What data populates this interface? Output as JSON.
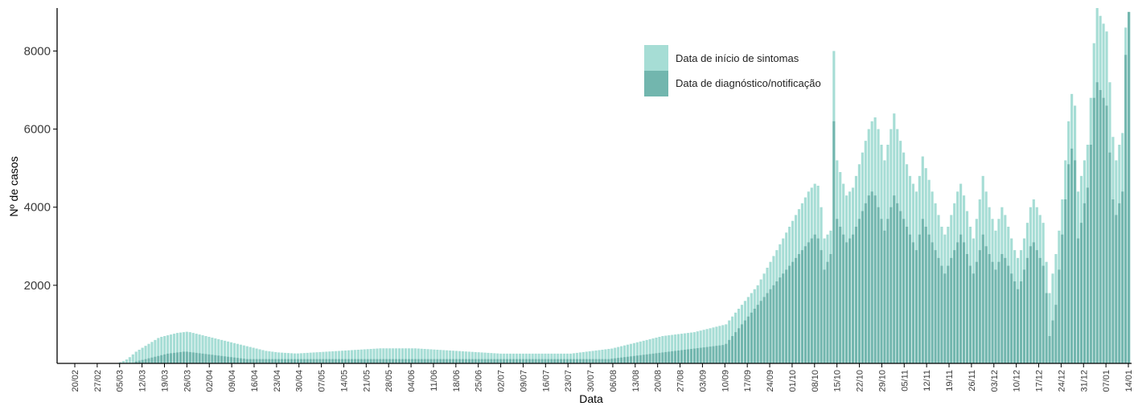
{
  "chart_data": {
    "type": "bar",
    "title": "",
    "xlabel": "Data",
    "ylabel": "Nº de casos",
    "ylim": [
      0,
      9100
    ],
    "yticks": [
      2000,
      4000,
      6000,
      8000
    ],
    "grid": false,
    "legend_position": "top-right",
    "x_tick_labels": [
      "20/02",
      "27/02",
      "05/03",
      "12/03",
      "19/03",
      "26/03",
      "02/04",
      "09/04",
      "16/04",
      "23/04",
      "30/04",
      "07/05",
      "14/05",
      "21/05",
      "28/05",
      "04/06",
      "11/06",
      "18/06",
      "25/06",
      "02/07",
      "09/07",
      "16/07",
      "23/07",
      "30/07",
      "06/08",
      "13/08",
      "20/08",
      "27/08",
      "03/09",
      "10/09",
      "17/09",
      "24/09",
      "01/10",
      "08/10",
      "15/10",
      "22/10",
      "29/10",
      "05/11",
      "12/11",
      "19/11",
      "26/11",
      "03/12",
      "10/12",
      "17/12",
      "24/12",
      "31/12",
      "07/01",
      "14/01"
    ],
    "series": [
      {
        "name": "Data de início de sintomas",
        "color": "#a6ddd5",
        "values": [
          0,
          0,
          0,
          0,
          0,
          0,
          0,
          0,
          0,
          0,
          0,
          0,
          0,
          0,
          0,
          0,
          0,
          5,
          10,
          30,
          60,
          100,
          160,
          230,
          300,
          350,
          400,
          450,
          500,
          550,
          600,
          650,
          680,
          700,
          720,
          740,
          760,
          780,
          790,
          800,
          810,
          800,
          780,
          760,
          740,
          720,
          700,
          680,
          660,
          640,
          620,
          600,
          580,
          560,
          540,
          520,
          500,
          480,
          460,
          440,
          420,
          400,
          380,
          360,
          340,
          320,
          310,
          300,
          290,
          280,
          275,
          270,
          265,
          260,
          255,
          255,
          260,
          265,
          270,
          275,
          280,
          285,
          290,
          295,
          300,
          305,
          310,
          315,
          320,
          325,
          330,
          335,
          340,
          345,
          350,
          355,
          360,
          365,
          370,
          375,
          380,
          385,
          385,
          385,
          385,
          385,
          385,
          385,
          385,
          385,
          385,
          385,
          385,
          380,
          375,
          370,
          365,
          360,
          355,
          350,
          345,
          340,
          335,
          330,
          325,
          320,
          315,
          310,
          305,
          300,
          295,
          290,
          285,
          280,
          275,
          270,
          265,
          260,
          255,
          250,
          250,
          250,
          250,
          250,
          250,
          250,
          250,
          250,
          250,
          250,
          250,
          250,
          250,
          250,
          250,
          250,
          250,
          250,
          250,
          250,
          250,
          250,
          260,
          270,
          280,
          290,
          300,
          310,
          320,
          330,
          340,
          350,
          360,
          370,
          380,
          400,
          420,
          440,
          460,
          480,
          500,
          520,
          540,
          560,
          580,
          600,
          620,
          640,
          660,
          680,
          700,
          710,
          720,
          730,
          740,
          750,
          760,
          770,
          780,
          790,
          800,
          820,
          840,
          860,
          880,
          900,
          920,
          940,
          960,
          980,
          1000,
          1100,
          1200,
          1300,
          1400,
          1500,
          1600,
          1700,
          1800,
          1900,
          2000,
          2150,
          2300,
          2450,
          2600,
          2750,
          2900,
          3050,
          3200,
          3350,
          3500,
          3650,
          3800,
          3950,
          4100,
          4250,
          4400,
          4500,
          4600,
          4550,
          4000,
          3200,
          3300,
          3400,
          8000,
          5200,
          4900,
          4600,
          4300,
          4400,
          4500,
          4800,
          5100,
          5400,
          5700,
          6000,
          6200,
          6300,
          6000,
          5600,
          5200,
          5600,
          6000,
          6400,
          6000,
          5700,
          5400,
          5100,
          4800,
          4600,
          4400,
          4800,
          5300,
          5000,
          4700,
          4400,
          4100,
          3800,
          3500,
          3300,
          3500,
          3800,
          4100,
          4400,
          4600,
          4300,
          3900,
          3500,
          3200,
          3700,
          4200,
          4800,
          4400,
          4000,
          3700,
          3400,
          3700,
          4000,
          3800,
          3500,
          3200,
          2900,
          2700,
          2900,
          3200,
          3600,
          4000,
          4200,
          4000,
          3800,
          3600,
          2600,
          1800,
          2300,
          2800,
          3400,
          4200,
          5200,
          6200,
          6900,
          6600,
          4400,
          4800,
          5200,
          5600,
          6800,
          8200,
          9100,
          8900,
          8700,
          8500,
          7200,
          5800,
          5200,
          5600,
          5900,
          8600,
          9000
        ]
      },
      {
        "name": "Data de diagnóstico/notificação",
        "color": "#72b6ae",
        "values": [
          0,
          0,
          0,
          0,
          0,
          0,
          0,
          0,
          0,
          0,
          0,
          0,
          0,
          0,
          0,
          0,
          0,
          0,
          0,
          0,
          0,
          0,
          0,
          0,
          50,
          70,
          90,
          110,
          130,
          150,
          170,
          190,
          210,
          230,
          250,
          260,
          270,
          280,
          290,
          300,
          300,
          290,
          280,
          270,
          260,
          250,
          240,
          230,
          220,
          210,
          200,
          190,
          180,
          170,
          160,
          150,
          140,
          130,
          120,
          110,
          110,
          110,
          110,
          110,
          110,
          110,
          110,
          110,
          110,
          110,
          110,
          110,
          110,
          110,
          110,
          110,
          110,
          110,
          110,
          110,
          110,
          110,
          110,
          110,
          110,
          110,
          110,
          110,
          110,
          110,
          110,
          110,
          110,
          110,
          110,
          110,
          110,
          110,
          110,
          110,
          110,
          110,
          110,
          110,
          110,
          110,
          110,
          110,
          110,
          110,
          110,
          110,
          110,
          110,
          110,
          110,
          110,
          110,
          110,
          110,
          110,
          110,
          110,
          110,
          110,
          110,
          110,
          110,
          110,
          110,
          110,
          110,
          110,
          110,
          110,
          110,
          110,
          110,
          110,
          110,
          110,
          110,
          110,
          110,
          110,
          110,
          110,
          110,
          110,
          110,
          110,
          110,
          110,
          110,
          110,
          110,
          110,
          110,
          110,
          110,
          110,
          110,
          110,
          110,
          110,
          110,
          110,
          110,
          110,
          110,
          110,
          110,
          110,
          110,
          120,
          130,
          140,
          150,
          160,
          170,
          180,
          190,
          200,
          210,
          220,
          230,
          240,
          250,
          260,
          270,
          280,
          290,
          300,
          310,
          320,
          330,
          340,
          350,
          360,
          370,
          380,
          390,
          400,
          410,
          420,
          430,
          440,
          450,
          460,
          470,
          500,
          600,
          700,
          800,
          900,
          1000,
          1100,
          1200,
          1300,
          1400,
          1500,
          1600,
          1700,
          1800,
          1900,
          2000,
          2100,
          2200,
          2300,
          2400,
          2500,
          2600,
          2700,
          2800,
          2900,
          3000,
          3100,
          3200,
          3300,
          3200,
          2900,
          2400,
          2600,
          2800,
          6200,
          3700,
          3500,
          3300,
          3100,
          3200,
          3300,
          3500,
          3700,
          3900,
          4100,
          4300,
          4400,
          4300,
          4000,
          3700,
          3400,
          3700,
          4000,
          4300,
          4100,
          3900,
          3700,
          3500,
          3300,
          3100,
          2900,
          3300,
          3700,
          3500,
          3300,
          3100,
          2900,
          2700,
          2500,
          2300,
          2500,
          2700,
          2900,
          3100,
          3300,
          3100,
          2800,
          2500,
          2300,
          2600,
          2900,
          3300,
          3000,
          2800,
          2600,
          2400,
          2600,
          2800,
          2700,
          2500,
          2300,
          2100,
          1900,
          2100,
          2400,
          2700,
          3000,
          3100,
          2900,
          2700,
          2500,
          1800,
          700,
          1100,
          1500,
          2400,
          3300,
          4200,
          5100,
          5500,
          5200,
          3200,
          3600,
          4100,
          4500,
          5600,
          6800,
          7200,
          7000,
          6800,
          6600,
          5400,
          4200,
          3800,
          4100,
          4400,
          7900,
          9000
        ]
      }
    ]
  }
}
